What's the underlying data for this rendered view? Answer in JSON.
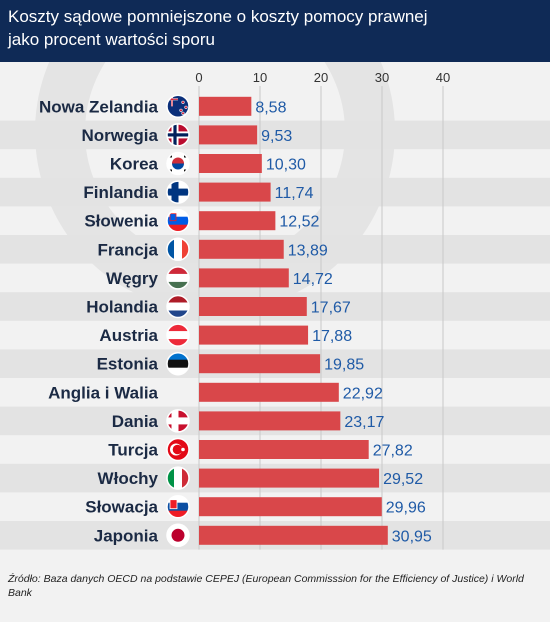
{
  "header": {
    "title_line1": "Koszty sądowe pomniejszone o koszty pomocy prawnej",
    "title_line2": "jako procent wartości sporu"
  },
  "source": "Źródło: Baza danych OECD na podstawie CEPEJ (European Commisssion for the Efficiency of Justice) i World Bank",
  "colors": {
    "header_bg": "#0f2a56",
    "bar": "#d9474a",
    "value_label": "#1f5aa6",
    "grid": "#c8c8c8",
    "row_alt": "#e3e3e3"
  },
  "chart_data": {
    "type": "bar",
    "orientation": "horizontal",
    "title": "Koszty sądowe pomniejszone o koszty pomocy prawnej jako procent wartości sporu",
    "xlim": [
      0,
      40
    ],
    "xticks": [
      "0",
      "10",
      "20",
      "30",
      "40"
    ],
    "grid": true,
    "categories": [
      "Nowa Zelandia",
      "Norwegia",
      "Korea",
      "Finlandia",
      "Słowenia",
      "Francja",
      "Węgry",
      "Holandia",
      "Austria",
      "Estonia",
      "Anglia i Walia",
      "Dania",
      "Turcja",
      "Włochy",
      "Słowacja",
      "Japonia"
    ],
    "values": [
      8.58,
      9.53,
      10.3,
      11.74,
      12.52,
      13.89,
      14.72,
      17.67,
      17.88,
      19.85,
      22.92,
      23.17,
      27.82,
      29.52,
      29.96,
      30.95
    ],
    "value_labels": [
      "8,58",
      "9,53",
      "10,30",
      "11,74",
      "12,52",
      "13,89",
      "14,72",
      "17,67",
      "17,88",
      "19,85",
      "22,92",
      "23,17",
      "27,82",
      "29,52",
      "29,96",
      "30,95"
    ],
    "flags": [
      "new-zealand-flag-icon",
      "norway-flag-icon",
      "south-korea-flag-icon",
      "finland-flag-icon",
      "slovenia-flag-icon",
      "france-flag-icon",
      "hungary-flag-icon",
      "netherlands-flag-icon",
      "austria-flag-icon",
      "estonia-flag-icon",
      "",
      "denmark-flag-icon",
      "turkey-flag-icon",
      "italy-flag-icon",
      "slovakia-flag-icon",
      "japan-flag-icon"
    ]
  }
}
